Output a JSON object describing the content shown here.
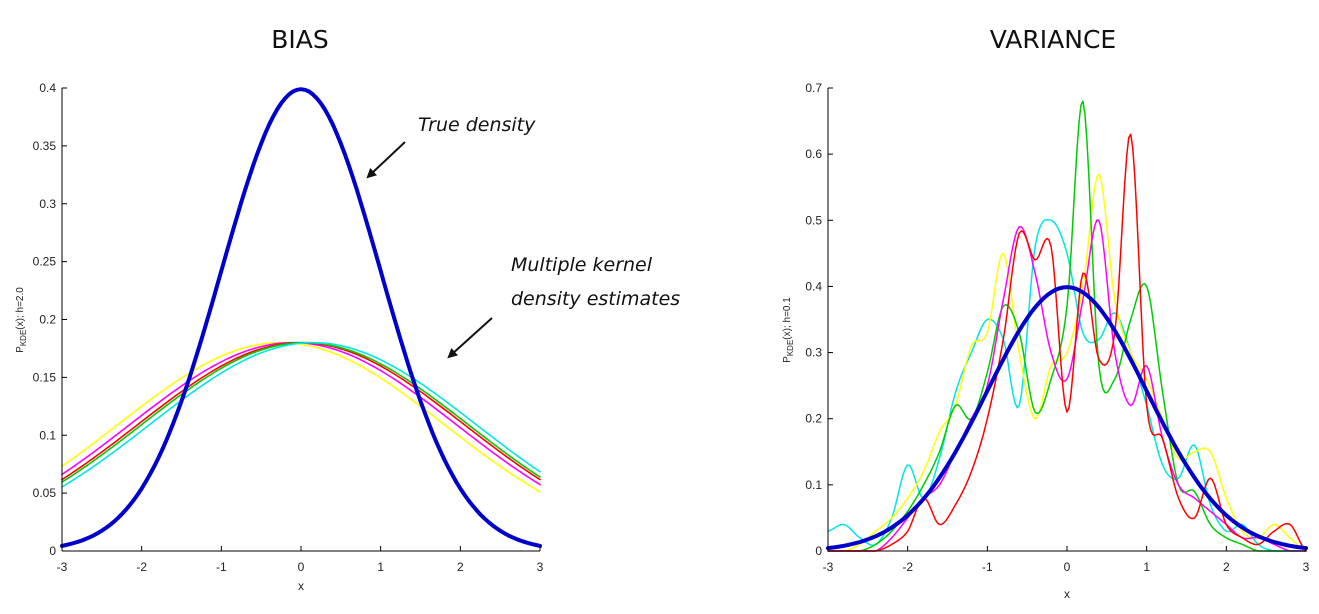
{
  "chart_data": [
    {
      "type": "line",
      "title": "BIAS",
      "xlabel": "x",
      "ylabel": {
        "prefix": "P",
        "subscript": "KDE",
        "suffix": "(x); h=2.0"
      },
      "xlim": [
        -3,
        3
      ],
      "ylim": [
        0,
        0.4
      ],
      "xticks": [
        "-3",
        "-2",
        "-1",
        "0",
        "1",
        "2",
        "3"
      ],
      "yticks": [
        "0",
        "0.05",
        "0.1",
        "0.15",
        "0.2",
        "0.25",
        "0.3",
        "0.35",
        "0.4"
      ],
      "annotations": [
        {
          "id": "true",
          "text": "True density",
          "points_to": [
            0.82,
            0.34
          ]
        },
        {
          "id": "kde1",
          "text": "Multiple kernel",
          "points_to": [
            1.85,
            0.15
          ]
        },
        {
          "id": "kde2",
          "text": "density estimates",
          "points_to": [
            1.85,
            0.15
          ]
        }
      ],
      "series": [
        {
          "color": "#ffff00",
          "mean": -0.25,
          "sd": 2.05,
          "width": 1.6,
          "x": [
            -3,
            -2.5,
            -2,
            -1.5,
            -1,
            -0.5,
            0,
            0.5,
            1,
            1.5,
            2,
            2.5,
            3
          ],
          "y": [
            0.083,
            0.11,
            0.134,
            0.155,
            0.17,
            0.178,
            0.18,
            0.176,
            0.164,
            0.145,
            0.122,
            0.095,
            0.067
          ]
        },
        {
          "color": "#ff00ff",
          "mean": -0.1,
          "sd": 2.05,
          "width": 1.6,
          "x": [
            -3,
            -2.5,
            -2,
            -1.5,
            -1,
            -0.5,
            0,
            0.5,
            1,
            1.5,
            2,
            2.5,
            3
          ],
          "y": [
            0.075,
            0.102,
            0.128,
            0.151,
            0.168,
            0.178,
            0.18,
            0.177,
            0.167,
            0.151,
            0.129,
            0.104,
            0.075
          ]
        },
        {
          "color": "#ff0000",
          "mean": 0.0,
          "sd": 2.05,
          "width": 1.6,
          "x": [
            -3,
            -2.5,
            -2,
            -1.5,
            -1,
            -0.5,
            0,
            0.5,
            1,
            1.5,
            2,
            2.5,
            3
          ],
          "y": [
            0.07,
            0.097,
            0.124,
            0.148,
            0.166,
            0.177,
            0.18,
            0.177,
            0.167,
            0.151,
            0.129,
            0.104,
            0.078
          ]
        },
        {
          "color": "#00cc00",
          "mean": 0.05,
          "sd": 2.05,
          "width": 1.6,
          "x": [
            -3,
            -2.5,
            -2,
            -1.5,
            -1,
            -0.5,
            0,
            0.5,
            1,
            1.5,
            2,
            2.5,
            3
          ],
          "y": [
            0.067,
            0.094,
            0.121,
            0.146,
            0.165,
            0.177,
            0.18,
            0.178,
            0.169,
            0.153,
            0.132,
            0.107,
            0.08
          ]
        },
        {
          "color": "#00e5e5",
          "mean": 0.15,
          "sd": 2.05,
          "width": 1.6,
          "x": [
            -3,
            -2.5,
            -2,
            -1.5,
            -1,
            -0.5,
            0,
            0.5,
            1,
            1.5,
            2,
            2.5,
            3
          ],
          "y": [
            0.06,
            0.086,
            0.114,
            0.14,
            0.162,
            0.176,
            0.18,
            0.179,
            0.171,
            0.157,
            0.137,
            0.112,
            0.085
          ]
        },
        {
          "color": "#0000cc",
          "width": 4,
          "x": [
            -3,
            -2.5,
            -2,
            -1.5,
            -1,
            -0.5,
            0,
            0.5,
            1,
            1.5,
            2,
            2.5,
            3
          ],
          "y": [
            0.004,
            0.018,
            0.054,
            0.13,
            0.242,
            0.352,
            0.399,
            0.352,
            0.242,
            0.13,
            0.054,
            0.018,
            0.004
          ]
        }
      ]
    },
    {
      "type": "line",
      "title": "VARIANCE",
      "xlabel": "x",
      "ylabel": {
        "prefix": "P",
        "subscript": "KDE",
        "suffix": "(x); h=0.1"
      },
      "xlim": [
        -3,
        3
      ],
      "ylim": [
        0,
        0.7
      ],
      "xticks": [
        "-3",
        "-2",
        "-1",
        "0",
        "1",
        "2",
        "3"
      ],
      "yticks": [
        "0",
        "0.1",
        "0.2",
        "0.3",
        "0.4",
        "0.5",
        "0.6",
        "0.7"
      ],
      "series": [
        {
          "color": "#00e5e5",
          "width": 1.5,
          "x": [
            -3,
            -2.8,
            -2.6,
            -2.4,
            -2.2,
            -2.0,
            -1.8,
            -1.6,
            -1.4,
            -1.2,
            -1.0,
            -0.8,
            -0.6,
            -0.4,
            -0.2,
            0.0,
            0.2,
            0.4,
            0.6,
            0.8,
            1.0,
            1.2,
            1.4,
            1.6,
            1.8,
            2.0,
            2.2,
            2.4,
            2.6,
            2.8,
            3.0
          ],
          "y": [
            0.03,
            0.04,
            0.02,
            0.01,
            0.05,
            0.13,
            0.08,
            0.14,
            0.24,
            0.3,
            0.35,
            0.32,
            0.22,
            0.46,
            0.5,
            0.45,
            0.33,
            0.32,
            0.36,
            0.3,
            0.22,
            0.13,
            0.11,
            0.16,
            0.07,
            0.03,
            0.04,
            0.01,
            0.0,
            0.0,
            0.0
          ]
        },
        {
          "color": "#ffff00",
          "width": 1.5,
          "x": [
            -3,
            -2.8,
            -2.6,
            -2.4,
            -2.2,
            -2.0,
            -1.8,
            -1.6,
            -1.4,
            -1.2,
            -1.0,
            -0.8,
            -0.6,
            -0.4,
            -0.2,
            0.0,
            0.2,
            0.4,
            0.6,
            0.8,
            1.0,
            1.2,
            1.4,
            1.6,
            1.8,
            2.0,
            2.2,
            2.4,
            2.6,
            2.8,
            3.0
          ],
          "y": [
            0.0,
            0.0,
            0.01,
            0.03,
            0.05,
            0.08,
            0.12,
            0.18,
            0.22,
            0.31,
            0.33,
            0.45,
            0.3,
            0.2,
            0.28,
            0.3,
            0.4,
            0.57,
            0.38,
            0.3,
            0.26,
            0.2,
            0.14,
            0.15,
            0.15,
            0.08,
            0.03,
            0.02,
            0.04,
            0.02,
            0.0
          ]
        },
        {
          "color": "#00cc00",
          "width": 1.5,
          "x": [
            -3,
            -2.8,
            -2.6,
            -2.4,
            -2.2,
            -2.0,
            -1.8,
            -1.6,
            -1.4,
            -1.2,
            -1.0,
            -0.8,
            -0.6,
            -0.4,
            -0.2,
            0.0,
            0.2,
            0.4,
            0.6,
            0.8,
            1.0,
            1.2,
            1.4,
            1.6,
            1.8,
            2.0,
            2.2,
            2.4,
            2.6,
            2.8,
            3.0
          ],
          "y": [
            0.0,
            0.0,
            0.0,
            0.01,
            0.03,
            0.06,
            0.1,
            0.15,
            0.22,
            0.2,
            0.27,
            0.37,
            0.33,
            0.21,
            0.26,
            0.37,
            0.68,
            0.28,
            0.26,
            0.35,
            0.4,
            0.24,
            0.1,
            0.09,
            0.04,
            0.02,
            0.01,
            0.0,
            0.0,
            0.0,
            0.0
          ]
        },
        {
          "color": "#ff00ff",
          "width": 1.5,
          "x": [
            -3,
            -2.8,
            -2.6,
            -2.4,
            -2.2,
            -2.0,
            -1.8,
            -1.6,
            -1.4,
            -1.2,
            -1.0,
            -0.8,
            -0.6,
            -0.4,
            -0.2,
            0.0,
            0.2,
            0.4,
            0.6,
            0.8,
            1.0,
            1.2,
            1.4,
            1.6,
            1.8,
            2.0,
            2.2,
            2.4,
            2.6,
            2.8,
            3.0
          ],
          "y": [
            0.0,
            0.0,
            0.0,
            0.0,
            0.02,
            0.05,
            0.08,
            0.1,
            0.15,
            0.2,
            0.25,
            0.38,
            0.49,
            0.42,
            0.3,
            0.26,
            0.38,
            0.5,
            0.3,
            0.22,
            0.28,
            0.17,
            0.1,
            0.08,
            0.06,
            0.04,
            0.02,
            0.02,
            0.01,
            0.0,
            0.0
          ]
        },
        {
          "color": "#ff0000",
          "width": 1.5,
          "x": [
            -3,
            -2.8,
            -2.6,
            -2.4,
            -2.2,
            -2.0,
            -1.8,
            -1.6,
            -1.4,
            -1.2,
            -1.0,
            -0.8,
            -0.6,
            -0.4,
            -0.2,
            0.0,
            0.2,
            0.4,
            0.6,
            0.8,
            1.0,
            1.2,
            1.4,
            1.6,
            1.8,
            2.0,
            2.2,
            2.4,
            2.6,
            2.8,
            3.0
          ],
          "y": [
            0.0,
            0.0,
            0.0,
            0.0,
            0.01,
            0.03,
            0.08,
            0.04,
            0.07,
            0.12,
            0.2,
            0.32,
            0.48,
            0.44,
            0.46,
            0.21,
            0.42,
            0.29,
            0.33,
            0.63,
            0.22,
            0.17,
            0.08,
            0.05,
            0.11,
            0.04,
            0.02,
            0.01,
            0.03,
            0.04,
            0.0
          ]
        },
        {
          "color": "#0000cc",
          "width": 4,
          "x": [
            -3,
            -2.5,
            -2,
            -1.5,
            -1,
            -0.5,
            0,
            0.5,
            1,
            1.5,
            2,
            2.5,
            3
          ],
          "y": [
            0.004,
            0.018,
            0.054,
            0.13,
            0.242,
            0.352,
            0.399,
            0.352,
            0.242,
            0.13,
            0.054,
            0.018,
            0.004
          ]
        }
      ]
    }
  ]
}
